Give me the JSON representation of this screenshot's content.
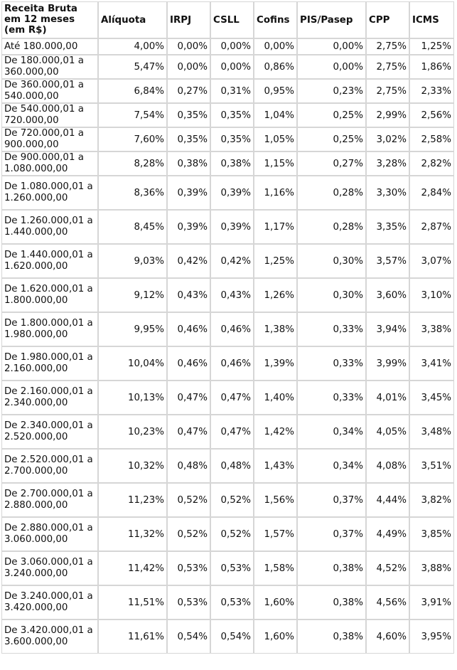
{
  "headers": [
    "Receita Bruta em 12 meses (em R$)",
    "Alíquota",
    "IRPJ",
    "CSLL",
    "Cofins",
    "PIS/Pasep",
    "CPP",
    "ICMS"
  ],
  "rows": [
    [
      "Até 180.000,00",
      "4,00%",
      "0,00%",
      "0,00%",
      "0,00%",
      "0,00%",
      "2,75%",
      "1,25%"
    ],
    [
      "De 180.000,01 a 360.000,00",
      "5,47%",
      "0,00%",
      "0,00%",
      "0,86%",
      "0,00%",
      "2,75%",
      "1,86%"
    ],
    [
      "De 360.000,01 a 540.000,00",
      "6,84%",
      "0,27%",
      "0,31%",
      "0,95%",
      "0,23%",
      "2,75%",
      "2,33%"
    ],
    [
      "De 540.000,01 a 720.000,00",
      "7,54%",
      "0,35%",
      "0,35%",
      "1,04%",
      "0,25%",
      "2,99%",
      "2,56%"
    ],
    [
      "De 720.000,01 a 900.000,00",
      "7,60%",
      "0,35%",
      "0,35%",
      "1,05%",
      "0,25%",
      "3,02%",
      "2,58%"
    ],
    [
      "De 900.000,01 a 1.080.000,00",
      "8,28%",
      "0,38%",
      "0,38%",
      "1,15%",
      "0,27%",
      "3,28%",
      "2,82%"
    ],
    [
      "De 1.080.000,01 a 1.260.000,00",
      "8,36%",
      "0,39%",
      "0,39%",
      "1,16%",
      "0,28%",
      "3,30%",
      "2,84%"
    ],
    [
      "De 1.260.000,01 a 1.440.000,00",
      "8,45%",
      "0,39%",
      "0,39%",
      "1,17%",
      "0,28%",
      "3,35%",
      "2,87%"
    ],
    [
      "De 1.440.000,01 a 1.620.000,00",
      "9,03%",
      "0,42%",
      "0,42%",
      "1,25%",
      "0,30%",
      "3,57%",
      "3,07%"
    ],
    [
      "De 1.620.000,01 a 1.800.000,00",
      "9,12%",
      "0,43%",
      "0,43%",
      "1,26%",
      "0,30%",
      "3,60%",
      "3,10%"
    ],
    [
      "De 1.800.000,01 a 1.980.000,00",
      "9,95%",
      "0,46%",
      "0,46%",
      "1,38%",
      "0,33%",
      "3,94%",
      "3,38%"
    ],
    [
      "De 1.980.000,01 a 2.160.000,00",
      "10,04%",
      "0,46%",
      "0,46%",
      "1,39%",
      "0,33%",
      "3,99%",
      "3,41%"
    ],
    [
      "De 2.160.000,01 a 2.340.000,00",
      "10,13%",
      "0,47%",
      "0,47%",
      "1,40%",
      "0,33%",
      "4,01%",
      "3,45%"
    ],
    [
      "De 2.340.000,01 a 2.520.000,00",
      "10,23%",
      "0,47%",
      "0,47%",
      "1,42%",
      "0,34%",
      "4,05%",
      "3,48%"
    ],
    [
      "De 2.520.000,01 a 2.700.000,00",
      "10,32%",
      "0,48%",
      "0,48%",
      "1,43%",
      "0,34%",
      "4,08%",
      "3,51%"
    ],
    [
      "De 2.700.000,01 a 2.880.000,00",
      "11,23%",
      "0,52%",
      "0,52%",
      "1,56%",
      "0,37%",
      "4,44%",
      "3,82%"
    ],
    [
      "De 2.880.000,01 a 3.060.000,00",
      "11,32%",
      "0,52%",
      "0,52%",
      "1,57%",
      "0,37%",
      "4,49%",
      "3,85%"
    ],
    [
      "De 3.060.000,01 a 3.240.000,00",
      "11,42%",
      "0,53%",
      "0,53%",
      "1,58%",
      "0,38%",
      "4,52%",
      "3,88%"
    ],
    [
      "De 3.240.000,01 a 3.420.000,00",
      "11,51%",
      "0,53%",
      "0,53%",
      "1,60%",
      "0,38%",
      "4,56%",
      "3,91%"
    ],
    [
      "De 3.420.000,01 a 3.600.000,00",
      "11,61%",
      "0,54%",
      "0,54%",
      "1,60%",
      "0,38%",
      "4,60%",
      "3,95%"
    ]
  ]
}
